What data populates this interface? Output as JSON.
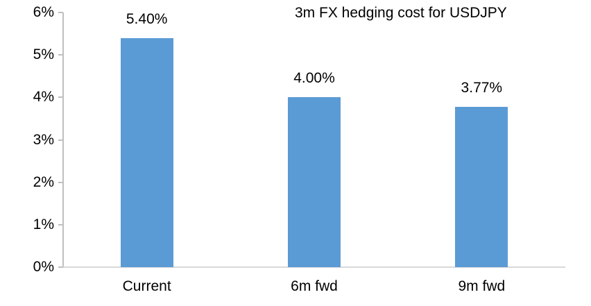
{
  "chart": {
    "title": "3m FX hedging cost for USDJPY",
    "bar_color": "#5B9BD5",
    "axis_color": "#BFBFBF",
    "baseline_color": "#D9D9D9",
    "text_color": "#000000"
  },
  "chart_data": {
    "type": "bar",
    "title": "3m FX hedging cost for USDJPY",
    "categories": [
      "Current",
      "6m fwd",
      "9m fwd"
    ],
    "values": [
      5.4,
      4.0,
      3.77
    ],
    "data_labels": [
      "5.40%",
      "4.00%",
      "3.77%"
    ],
    "xlabel": "",
    "ylabel": "",
    "ylim": [
      0,
      6
    ],
    "y_ticks": [
      {
        "value": 0,
        "label": "0%"
      },
      {
        "value": 1,
        "label": "1%"
      },
      {
        "value": 2,
        "label": "2%"
      },
      {
        "value": 3,
        "label": "3%"
      },
      {
        "value": 4,
        "label": "4%"
      },
      {
        "value": 5,
        "label": "5%"
      },
      {
        "value": 6,
        "label": "6%"
      }
    ],
    "grid": false,
    "legend": false,
    "title_position": "top-right"
  }
}
